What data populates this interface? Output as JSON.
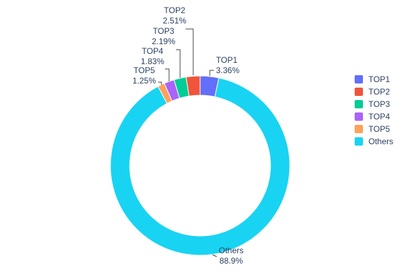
{
  "chart_data": {
    "type": "pie",
    "subtype": "donut",
    "title": "",
    "hole": 0.785,
    "legend_position": "right",
    "slices": [
      {
        "name": "TOP1",
        "value": 3.36,
        "pct_label": "3.36%",
        "color": "#636EFA"
      },
      {
        "name": "TOP2",
        "value": 2.51,
        "pct_label": "2.51%",
        "color": "#EF553B"
      },
      {
        "name": "TOP3",
        "value": 2.19,
        "pct_label": "2.19%",
        "color": "#00CC96"
      },
      {
        "name": "TOP4",
        "value": 1.83,
        "pct_label": "1.83%",
        "color": "#AB63FA"
      },
      {
        "name": "TOP5",
        "value": 1.25,
        "pct_label": "1.25%",
        "color": "#FFA15A"
      },
      {
        "name": "Others",
        "value": 88.9,
        "pct_label": "88.9%",
        "color": "#19D3F3"
      }
    ],
    "draw_order": [
      0,
      5,
      4,
      3,
      2,
      1
    ]
  }
}
